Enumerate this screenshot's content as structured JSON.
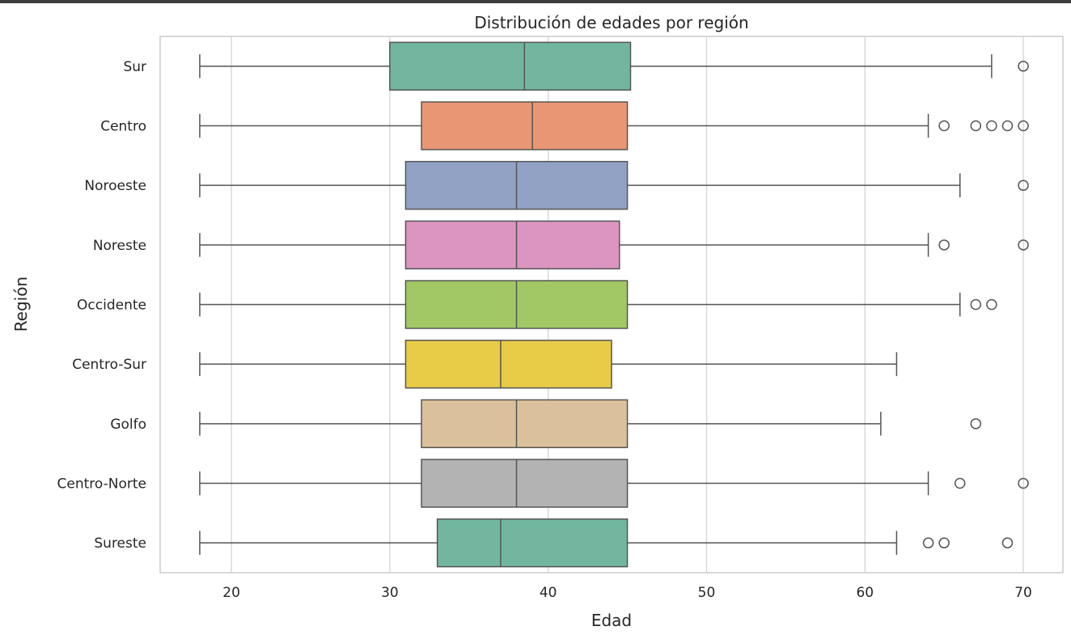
{
  "chart_data": {
    "type": "boxplot",
    "orientation": "horizontal",
    "title": "Distribución de edades por región",
    "xlabel": "Edad",
    "ylabel": "Región",
    "xlim": [
      15.5,
      72.5
    ],
    "xticks": [
      "20",
      "30",
      "40",
      "50",
      "60",
      "70"
    ],
    "grid": "vertical",
    "categories": [
      "Sur",
      "Centro",
      "Noroeste",
      "Noreste",
      "Occidente",
      "Centro-Sur",
      "Golfo",
      "Centro-Norte",
      "Sureste"
    ],
    "series": [
      {
        "category": "Sur",
        "color": "#72b6a0",
        "whisker_low": 18,
        "q1": 30,
        "median": 38.5,
        "q3": 45.2,
        "whisker_high": 68,
        "outliers": [
          70
        ]
      },
      {
        "category": "Centro",
        "color": "#e99674",
        "whisker_low": 18,
        "q1": 32,
        "median": 39,
        "q3": 45,
        "whisker_high": 64,
        "outliers": [
          65,
          67,
          68,
          69,
          70
        ]
      },
      {
        "category": "Noroeste",
        "color": "#92a2c5",
        "whisker_low": 18,
        "q1": 31,
        "median": 38,
        "q3": 45,
        "whisker_high": 66,
        "outliers": [
          70
        ]
      },
      {
        "category": "Noreste",
        "color": "#dc94c0",
        "whisker_low": 18,
        "q1": 31,
        "median": 38,
        "q3": 44.5,
        "whisker_high": 64,
        "outliers": [
          65,
          70
        ]
      },
      {
        "category": "Occidente",
        "color": "#a1c864",
        "whisker_low": 18,
        "q1": 31,
        "median": 38,
        "q3": 45,
        "whisker_high": 66,
        "outliers": [
          67,
          68
        ]
      },
      {
        "category": "Centro-Sur",
        "color": "#e8cb47",
        "whisker_low": 18,
        "q1": 31,
        "median": 37,
        "q3": 44,
        "whisker_high": 62,
        "outliers": []
      },
      {
        "category": "Golfo",
        "color": "#dbc19b",
        "whisker_low": 18,
        "q1": 32,
        "median": 38,
        "q3": 45,
        "whisker_high": 61,
        "outliers": [
          67
        ]
      },
      {
        "category": "Centro-Norte",
        "color": "#b3b3b3",
        "whisker_low": 18,
        "q1": 32,
        "median": 38,
        "q3": 45,
        "whisker_high": 64,
        "outliers": [
          66,
          70
        ]
      },
      {
        "category": "Sureste",
        "color": "#72b6a0",
        "whisker_low": 18,
        "q1": 33,
        "median": 37,
        "q3": 45,
        "whisker_high": 62,
        "outliers": [
          64,
          65,
          69
        ]
      }
    ]
  }
}
